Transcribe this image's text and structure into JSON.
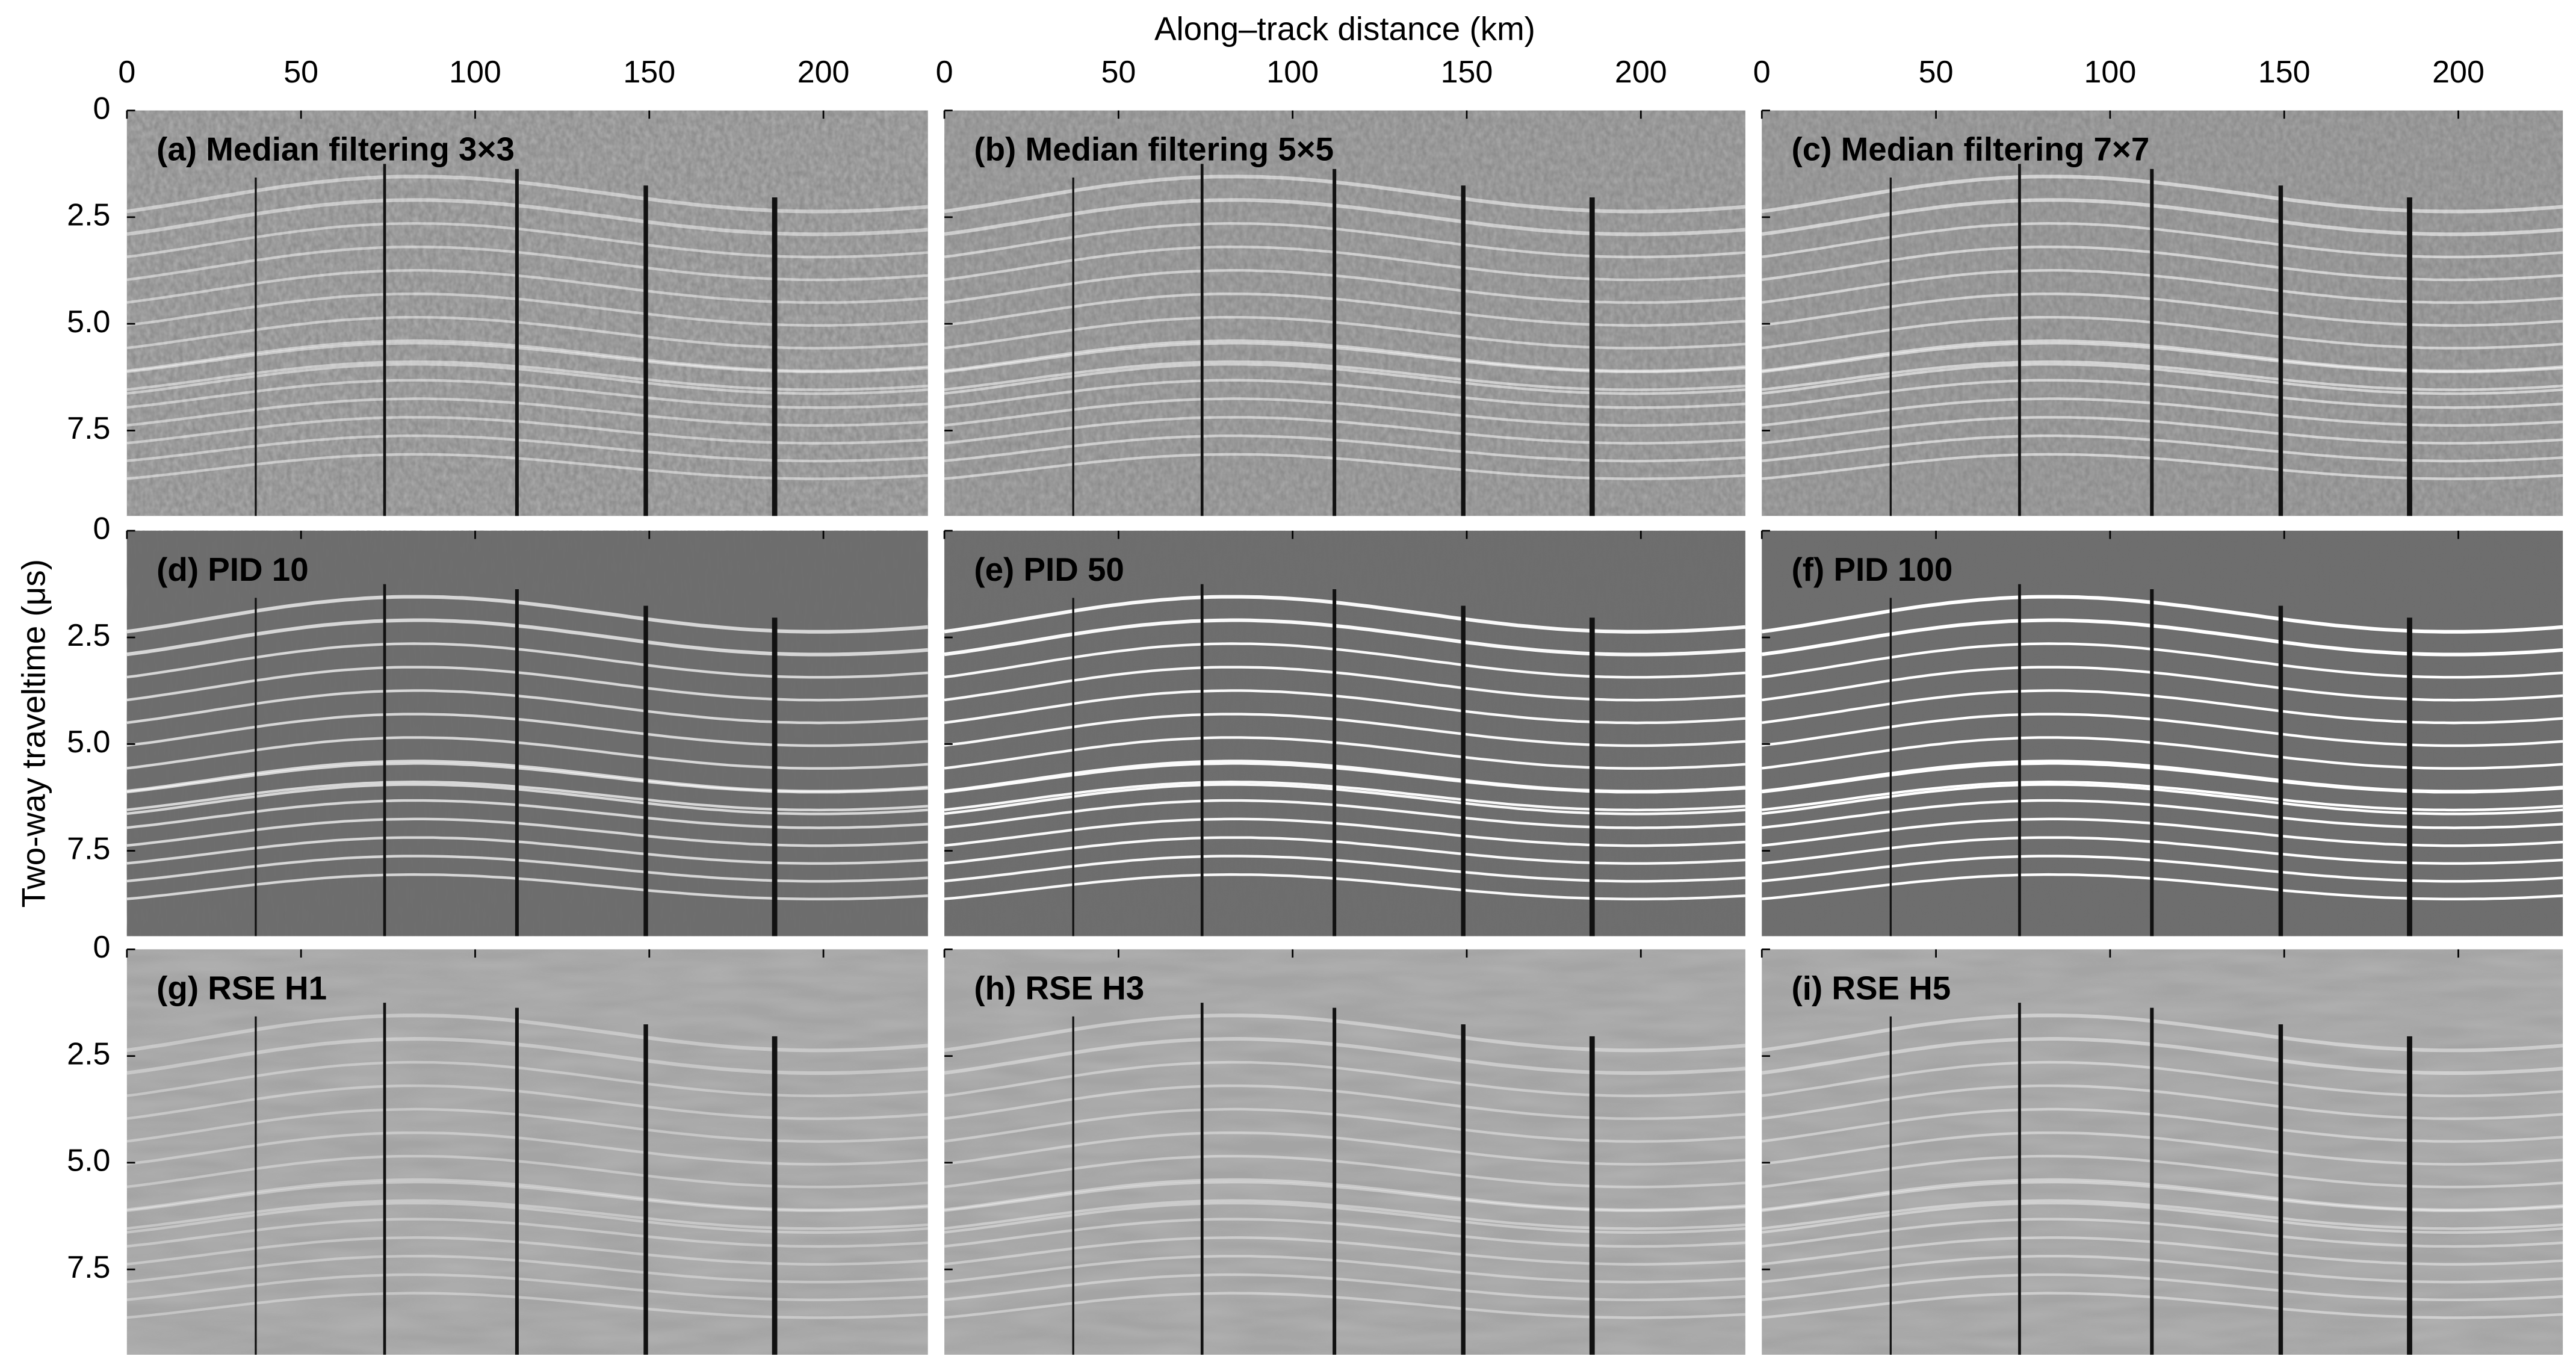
{
  "chart_data": {
    "type": "image-grid",
    "xlabel": "Along–track distance (km)",
    "ylabel": "Two-way traveltime (μs)",
    "xlim": [
      0,
      230
    ],
    "xticks": [
      0,
      50,
      100,
      150,
      200
    ],
    "ylim": [
      0,
      9.5
    ],
    "y_inverted": true,
    "yticks": [
      0,
      2.5,
      {
        "value": 5,
        "label": "5.0"
      },
      7.5
    ],
    "panels": [
      {
        "title": "(a) Median filtering 3×3"
      },
      {
        "title": "(b) Median filtering 5×5"
      },
      {
        "title": "(c) Median filtering 7×7"
      },
      {
        "title": "(d) PID 10"
      },
      {
        "title": "(e) PID 50"
      },
      {
        "title": "(f) PID 100"
      },
      {
        "title": "(g) RSE H1"
      },
      {
        "title": "(h) RSE H3"
      },
      {
        "title": "(i) RSE H5"
      }
    ]
  }
}
